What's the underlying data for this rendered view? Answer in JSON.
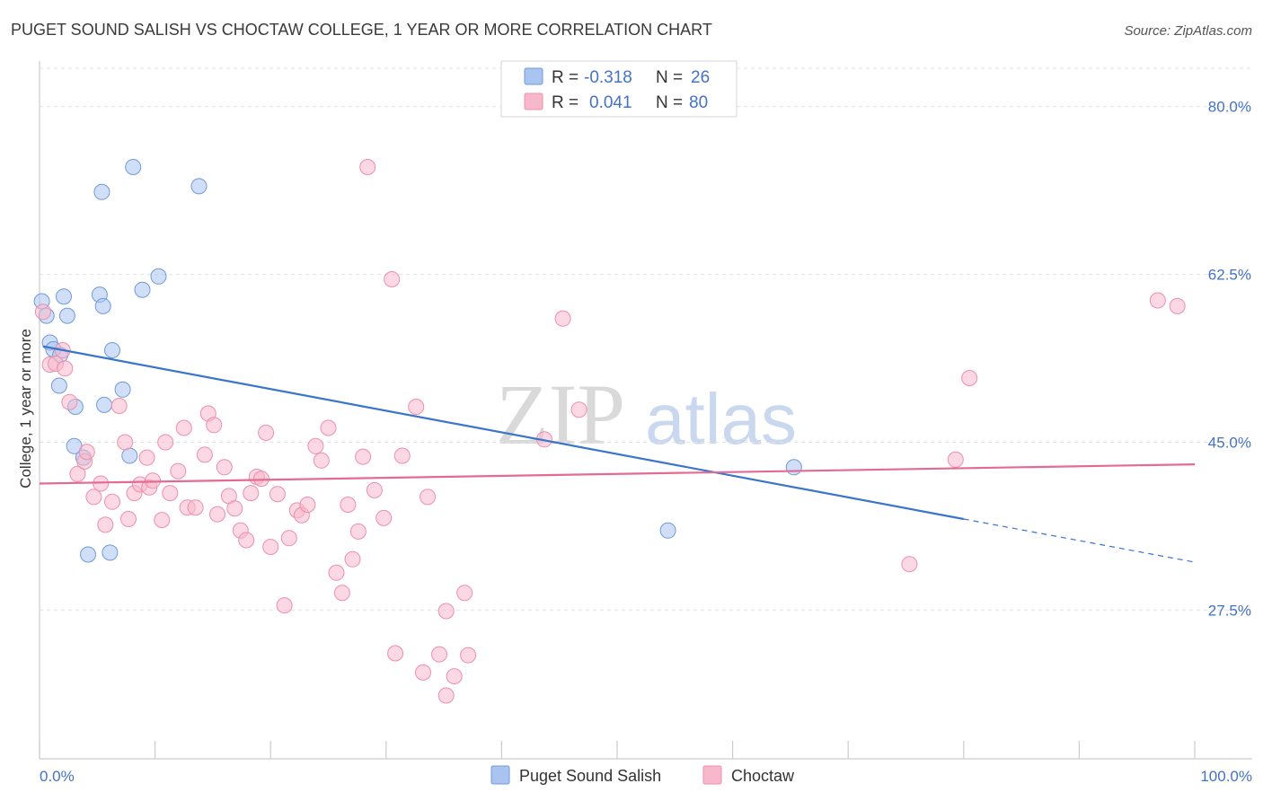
{
  "title": "PUGET SOUND SALISH VS CHOCTAW COLLEGE, 1 YEAR OR MORE CORRELATION CHART",
  "source": "Source: ZipAtlas.com",
  "watermark": {
    "zip": "ZIP",
    "atlas": "atlas"
  },
  "legend": {
    "rows": [
      {
        "r_label": "R = ",
        "r_value": "-0.318",
        "n_label": "N = ",
        "n_value": "26",
        "color": "#a9c4f0"
      },
      {
        "r_label": "R = ",
        "r_value": "0.041",
        "n_label": "N = ",
        "n_value": "80",
        "color": "#f7b8cc"
      }
    ]
  },
  "bottom_legend": [
    {
      "label": "Puget Sound Salish",
      "color": "#a9c4f0"
    },
    {
      "label": "Choctaw",
      "color": "#f7b8cc"
    }
  ],
  "chart_data": {
    "type": "scatter",
    "title": "PUGET SOUND SALISH VS CHOCTAW COLLEGE, 1 YEAR OR MORE CORRELATION CHART",
    "xlabel": "",
    "ylabel": "College, 1 year or more",
    "xlim": [
      0,
      100
    ],
    "ylim": [
      12,
      84
    ],
    "x_tick_labels": [
      "0.0%",
      "100.0%"
    ],
    "y_ticks": [
      {
        "value": 80.0,
        "label": "80.0%"
      },
      {
        "value": 62.5,
        "label": "62.5%"
      },
      {
        "value": 45.0,
        "label": "45.0%"
      },
      {
        "value": 27.5,
        "label": "27.5%"
      }
    ],
    "grid": true,
    "legend_position": "top-center",
    "series": [
      {
        "name": "Puget Sound Salish",
        "color": "#a9c4f0",
        "stroke": "#6f9bd8",
        "line_color": "#3a74cc",
        "trend": {
          "x1": 0.3,
          "y1": 55.0,
          "x2": 80,
          "y2": 37.0,
          "dash_to_x": 100,
          "dash_to_y": 32.5
        },
        "points": [
          [
            0.2,
            59.7
          ],
          [
            0.6,
            58.2
          ],
          [
            0.9,
            55.4
          ],
          [
            1.2,
            54.7
          ],
          [
            1.8,
            54.1
          ],
          [
            2.1,
            60.2
          ],
          [
            2.4,
            58.2
          ],
          [
            1.7,
            50.9
          ],
          [
            3.1,
            48.7
          ],
          [
            3.0,
            44.6
          ],
          [
            3.8,
            43.4
          ],
          [
            4.2,
            33.3
          ],
          [
            5.2,
            60.4
          ],
          [
            5.4,
            71.1
          ],
          [
            5.5,
            59.2
          ],
          [
            5.6,
            48.9
          ],
          [
            6.3,
            54.6
          ],
          [
            6.1,
            33.5
          ],
          [
            7.2,
            50.5
          ],
          [
            7.8,
            43.6
          ],
          [
            8.1,
            73.7
          ],
          [
            8.9,
            60.9
          ],
          [
            10.3,
            62.3
          ],
          [
            13.8,
            71.7
          ],
          [
            54.4,
            35.8
          ],
          [
            65.3,
            42.4
          ]
        ]
      },
      {
        "name": "Choctaw",
        "color": "#f7b8cc",
        "stroke": "#ee8fab",
        "line_color": "#e46a93",
        "trend": {
          "x1": 0,
          "y1": 40.7,
          "x2": 100,
          "y2": 42.7
        },
        "points": [
          [
            0.3,
            58.6
          ],
          [
            0.9,
            53.1
          ],
          [
            1.4,
            53.2
          ],
          [
            2.0,
            54.6
          ],
          [
            2.2,
            52.7
          ],
          [
            2.6,
            49.2
          ],
          [
            3.3,
            41.7
          ],
          [
            3.9,
            43.0
          ],
          [
            4.1,
            44.0
          ],
          [
            4.7,
            39.3
          ],
          [
            5.3,
            40.7
          ],
          [
            5.7,
            36.4
          ],
          [
            6.3,
            38.8
          ],
          [
            6.9,
            48.8
          ],
          [
            7.4,
            45.0
          ],
          [
            7.7,
            37.0
          ],
          [
            8.2,
            39.7
          ],
          [
            8.7,
            40.6
          ],
          [
            9.3,
            43.4
          ],
          [
            9.5,
            40.3
          ],
          [
            9.8,
            41.0
          ],
          [
            10.6,
            36.9
          ],
          [
            10.9,
            45.0
          ],
          [
            11.3,
            39.7
          ],
          [
            12.0,
            42.0
          ],
          [
            12.5,
            46.5
          ],
          [
            12.8,
            38.2
          ],
          [
            13.5,
            38.2
          ],
          [
            14.3,
            43.7
          ],
          [
            14.6,
            48.0
          ],
          [
            15.1,
            46.8
          ],
          [
            15.4,
            37.5
          ],
          [
            16.0,
            42.4
          ],
          [
            16.4,
            39.4
          ],
          [
            16.9,
            38.1
          ],
          [
            17.4,
            35.8
          ],
          [
            17.9,
            34.8
          ],
          [
            18.3,
            39.7
          ],
          [
            18.8,
            41.4
          ],
          [
            19.2,
            41.2
          ],
          [
            19.6,
            46.0
          ],
          [
            20.0,
            34.1
          ],
          [
            20.6,
            39.6
          ],
          [
            21.2,
            28.0
          ],
          [
            21.6,
            35.0
          ],
          [
            22.3,
            37.9
          ],
          [
            22.7,
            37.4
          ],
          [
            23.2,
            38.5
          ],
          [
            23.9,
            44.6
          ],
          [
            24.4,
            43.1
          ],
          [
            25.0,
            46.5
          ],
          [
            25.7,
            31.4
          ],
          [
            26.2,
            29.3
          ],
          [
            26.7,
            38.5
          ],
          [
            27.1,
            32.8
          ],
          [
            27.6,
            35.7
          ],
          [
            28.0,
            43.5
          ],
          [
            28.4,
            73.7
          ],
          [
            29.0,
            40.0
          ],
          [
            29.8,
            37.1
          ],
          [
            30.5,
            62.0
          ],
          [
            30.8,
            23.0
          ],
          [
            31.4,
            43.6
          ],
          [
            32.6,
            48.7
          ],
          [
            33.6,
            39.3
          ],
          [
            33.2,
            21.0
          ],
          [
            34.6,
            22.9
          ],
          [
            35.2,
            27.4
          ],
          [
            35.9,
            20.6
          ],
          [
            35.2,
            18.6
          ],
          [
            36.8,
            29.3
          ],
          [
            37.1,
            22.8
          ],
          [
            43.7,
            45.3
          ],
          [
            45.3,
            57.9
          ],
          [
            46.7,
            48.4
          ],
          [
            75.3,
            32.3
          ],
          [
            79.3,
            43.2
          ],
          [
            80.5,
            51.7
          ],
          [
            96.8,
            59.8
          ],
          [
            98.5,
            59.2
          ]
        ]
      }
    ]
  }
}
